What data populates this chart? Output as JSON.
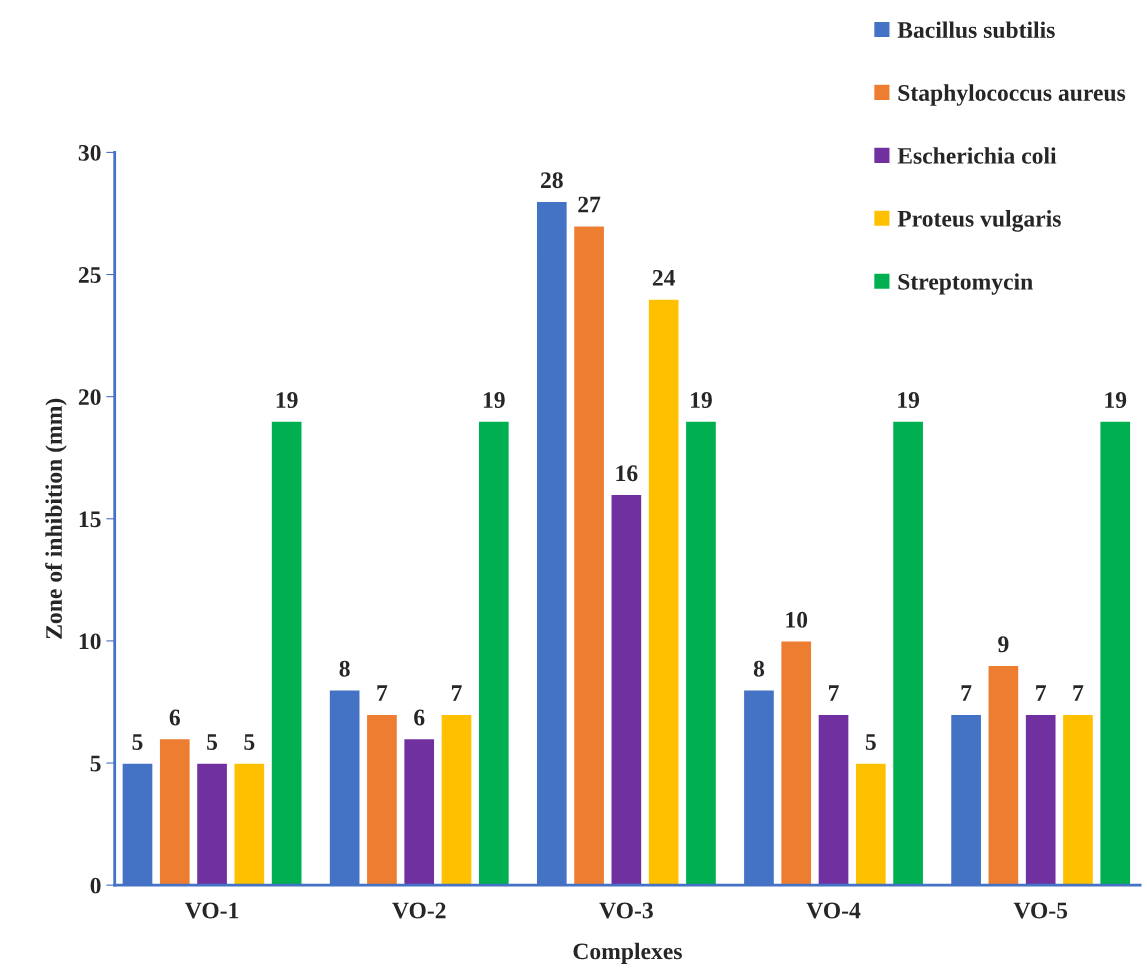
{
  "chart_data": {
    "type": "bar",
    "xlabel": "Complexes",
    "ylabel": "Zone of inhibition (mm)",
    "categories": [
      "VO-1",
      "VO-2",
      "VO-3",
      "VO-4",
      "VO-5"
    ],
    "series": [
      {
        "name": "Bacillus subtilis",
        "color": "#4472c4",
        "values": [
          5,
          8,
          28,
          8,
          7
        ]
      },
      {
        "name": "Staphylococcus aureus",
        "color": "#ed7d31",
        "values": [
          6,
          7,
          27,
          10,
          9
        ]
      },
      {
        "name": "Escherichia coli",
        "color": "#7030a0",
        "values": [
          5,
          6,
          16,
          7,
          7
        ]
      },
      {
        "name": "Proteus vulgaris",
        "color": "#ffc000",
        "values": [
          5,
          7,
          24,
          5,
          7
        ]
      },
      {
        "name": "Streptomycin",
        "color": "#00b050",
        "values": [
          19,
          19,
          19,
          19,
          19
        ]
      }
    ],
    "ylim": [
      0,
      30
    ],
    "yticks": [
      0,
      5,
      10,
      15,
      20,
      25,
      30
    ],
    "data_labels": true,
    "grid": false,
    "legend": "top right"
  }
}
